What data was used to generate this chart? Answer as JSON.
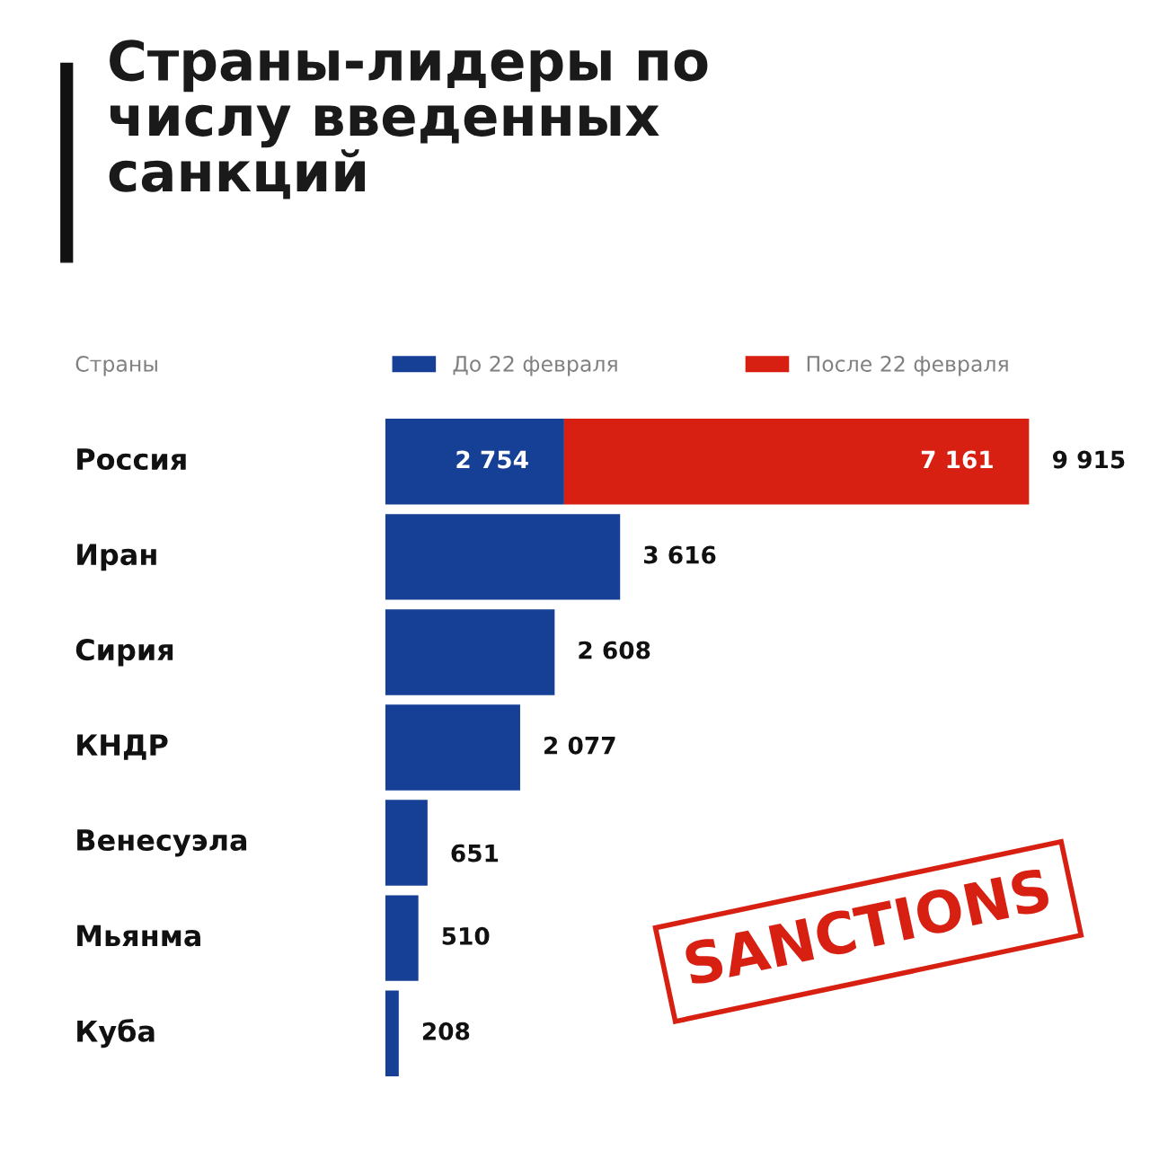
{
  "chart_data": {
    "type": "bar",
    "orientation": "horizontal",
    "stacked": true,
    "title": "Страны-лидеры по\nчислу введенных\nсанкций",
    "ylabel": "Страны",
    "categories": [
      "Россия",
      "Иран",
      "Сирия",
      "КНДР",
      "Венесуэла",
      "Мьянма",
      "Куба"
    ],
    "series": [
      {
        "name": "До 22 февраля",
        "color": "#163f96",
        "values": [
          2754,
          3616,
          2608,
          2077,
          651,
          510,
          208
        ],
        "value_labels": [
          "2 754",
          "3 616",
          "2 608",
          "2 077",
          "651",
          "510",
          "208"
        ]
      },
      {
        "name": "После 22 февраля",
        "color": "#d71f12",
        "values": [
          7161,
          null,
          null,
          null,
          null,
          null,
          null
        ],
        "value_labels": [
          "7 161",
          null,
          null,
          null,
          null,
          null,
          null
        ]
      }
    ],
    "totals": [
      "9 915",
      null,
      null,
      null,
      null,
      null,
      null
    ],
    "annotations": [
      "SANCTIONS"
    ],
    "legend": "top",
    "grid": false
  }
}
